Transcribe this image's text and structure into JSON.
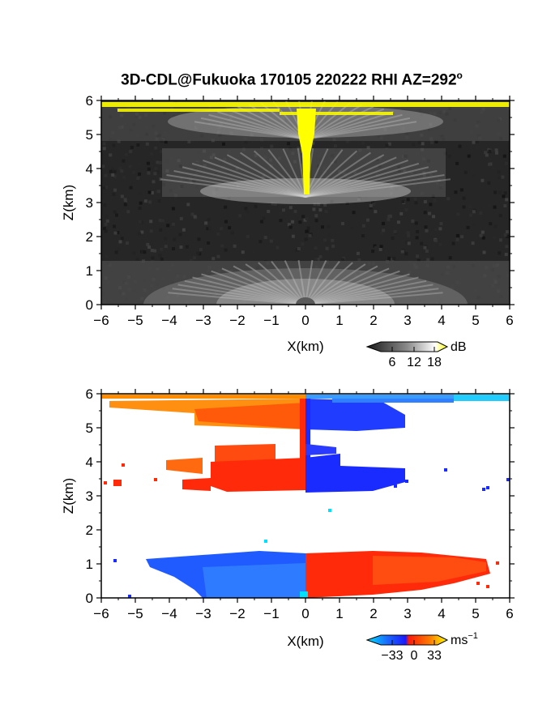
{
  "title": {
    "main": "3D-CDL@Fukuoka 170105 220222 RHI AZ=292",
    "superscript": "o"
  },
  "chart_data": [
    {
      "type": "heatmap",
      "panel": "reflectivity",
      "xlabel": "X(km)",
      "ylabel": "Z(km)",
      "xlim": [
        -6,
        6
      ],
      "ylim": [
        0,
        6
      ],
      "x_ticks": [
        -6,
        -5,
        -4,
        -3,
        -2,
        -1,
        0,
        1,
        2,
        3,
        4,
        5,
        6
      ],
      "y_ticks": [
        0,
        1,
        2,
        3,
        4,
        5,
        6
      ],
      "x_tick_labels": [
        "−6",
        "−5",
        "−4",
        "−3",
        "−2",
        "−1",
        "0",
        "1",
        "2",
        "3",
        "4",
        "5",
        "6"
      ],
      "y_tick_labels": [
        "0",
        "1",
        "2",
        "3",
        "4",
        "5",
        "6"
      ],
      "colorbar": {
        "unit": "dB",
        "ticks": [
          6,
          12,
          18
        ],
        "tick_labels": [
          "6",
          "12",
          "18"
        ],
        "colormap": "grayscale-to-yellow"
      },
      "features": [
        {
          "name": "low echo layer",
          "x_range": [
            -6,
            6
          ],
          "z_range": [
            0,
            1.3
          ]
        },
        {
          "name": "mid echo layer",
          "x_range": [
            -5,
            5
          ],
          "z_range": [
            3.3,
            4.6
          ]
        },
        {
          "name": "upper echo layer",
          "x_range": [
            -6,
            6
          ],
          "z_range": [
            5.2,
            6
          ]
        },
        {
          "name": "strong return column",
          "x_range": [
            -0.2,
            0.2
          ],
          "z_range": [
            3.2,
            6
          ]
        },
        {
          "name": "strong return band",
          "x_range": [
            -5.5,
            6
          ],
          "z_range": [
            5.6,
            6
          ]
        }
      ]
    },
    {
      "type": "heatmap",
      "panel": "doppler-velocity",
      "xlabel": "X(km)",
      "ylabel": "Z(km)",
      "xlim": [
        -6,
        6
      ],
      "ylim": [
        0,
        6
      ],
      "x_ticks": [
        -6,
        -5,
        -4,
        -3,
        -2,
        -1,
        0,
        1,
        2,
        3,
        4,
        5,
        6
      ],
      "y_ticks": [
        0,
        1,
        2,
        3,
        4,
        5,
        6
      ],
      "x_tick_labels": [
        "−6",
        "−5",
        "−4",
        "−3",
        "−2",
        "−1",
        "0",
        "1",
        "2",
        "3",
        "4",
        "5",
        "6"
      ],
      "y_tick_labels": [
        "0",
        "1",
        "2",
        "3",
        "4",
        "5",
        "6"
      ],
      "colorbar": {
        "unit": "ms",
        "unit_exponent": "−1",
        "ticks": [
          -33,
          0,
          33
        ],
        "tick_labels": [
          "−33",
          "0",
          "33"
        ],
        "colormap": "cyan-blue-red-yellow"
      },
      "features": [
        {
          "name": "low layer approaching",
          "x_range": [
            -4.5,
            0
          ],
          "z_range": [
            0,
            1.3
          ],
          "velocity_sign": "negative"
        },
        {
          "name": "low layer receding",
          "x_range": [
            0,
            5.5
          ],
          "z_range": [
            0,
            1.4
          ],
          "velocity_sign": "positive"
        },
        {
          "name": "mid layer receding",
          "x_range": [
            -6,
            0
          ],
          "z_range": [
            3.1,
            4.6
          ],
          "velocity_sign": "positive"
        },
        {
          "name": "mid layer approaching",
          "x_range": [
            0,
            6
          ],
          "z_range": [
            3.1,
            4.1
          ],
          "velocity_sign": "negative"
        },
        {
          "name": "upper layer receding",
          "x_range": [
            -6,
            0
          ],
          "z_range": [
            5.0,
            6
          ],
          "velocity_sign": "positive"
        },
        {
          "name": "upper layer approaching",
          "x_range": [
            0,
            6
          ],
          "z_range": [
            5.0,
            6
          ],
          "velocity_sign": "negative"
        }
      ]
    }
  ],
  "colors": {
    "yellow": "#ffff00",
    "blue": "#1a2bff",
    "red": "#ff2a0a",
    "orange": "#ff9a00",
    "cyan": "#00ccff",
    "gray_dark": "#1a1a1a"
  }
}
